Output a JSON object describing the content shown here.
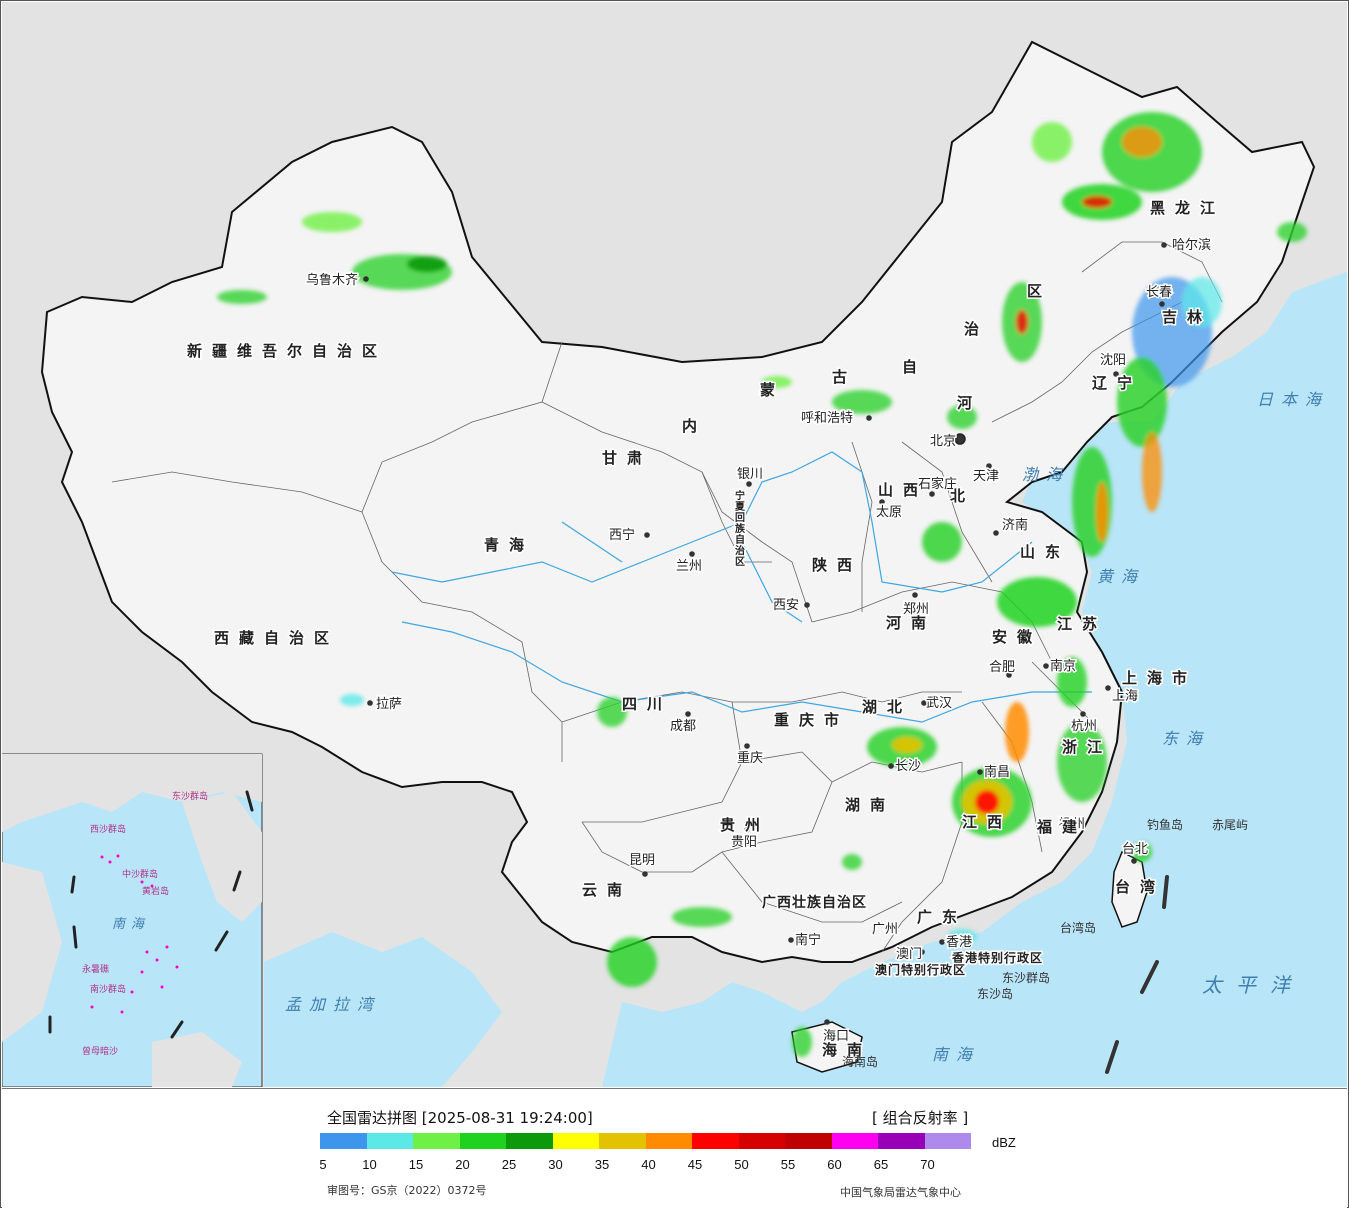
{
  "legend": {
    "title": "全国雷达拼图 [2025-08-31 19:24:00]",
    "product": "[ 组合反射率 ]",
    "unit": "dBZ",
    "approval_number": "审图号：GS京（2022）0372号",
    "agency": "中国气象局雷达气象中心",
    "colors": [
      "#3d95ec",
      "#5de8e8",
      "#6ef046",
      "#1ed21e",
      "#0c9a0c",
      "#ffff00",
      "#e3c200",
      "#ff8c00",
      "#ff0000",
      "#d60000",
      "#c00000",
      "#ff00f0",
      "#9800b8",
      "#ad8aeb"
    ],
    "ticks": [
      "5",
      "10",
      "15",
      "20",
      "25",
      "30",
      "35",
      "40",
      "45",
      "50",
      "55",
      "60",
      "65",
      "70"
    ]
  },
  "map": {
    "colors": {
      "sea": "#b9e5f8",
      "land_china": "#f4f4f4",
      "land_other": "#e3e3e3",
      "border": "#111111",
      "river": "#3fa6e0"
    },
    "cities": [
      {
        "id": "urumqi",
        "name": "乌鲁木齐"
      },
      {
        "id": "lhasa",
        "name": "拉萨"
      },
      {
        "id": "xining",
        "name": "西宁"
      },
      {
        "id": "lanzhou",
        "name": "兰州"
      },
      {
        "id": "yinchuan",
        "name": "银川"
      },
      {
        "id": "hohhot",
        "name": "呼和浩特"
      },
      {
        "id": "beijing",
        "name": "北京"
      },
      {
        "id": "tianjin",
        "name": "天津"
      },
      {
        "id": "shijiazhuang",
        "name": "石家庄"
      },
      {
        "id": "taiyuan",
        "name": "太原"
      },
      {
        "id": "jinan",
        "name": "济南"
      },
      {
        "id": "zhengzhou",
        "name": "郑州"
      },
      {
        "id": "xian",
        "name": "西安"
      },
      {
        "id": "chengdu",
        "name": "成都"
      },
      {
        "id": "chongqing",
        "name": "重庆"
      },
      {
        "id": "wuhan",
        "name": "武汉"
      },
      {
        "id": "hefei",
        "name": "合肥"
      },
      {
        "id": "nanjing",
        "name": "南京"
      },
      {
        "id": "shanghai",
        "name": "上海"
      },
      {
        "id": "hangzhou",
        "name": "杭州"
      },
      {
        "id": "nanchang",
        "name": "南昌"
      },
      {
        "id": "changsha",
        "name": "长沙"
      },
      {
        "id": "fuzhou",
        "name": "福州"
      },
      {
        "id": "taipei",
        "name": "台北"
      },
      {
        "id": "guiyang",
        "name": "贵阳"
      },
      {
        "id": "kunming",
        "name": "昆明"
      },
      {
        "id": "nanning",
        "name": "南宁"
      },
      {
        "id": "guangzhou",
        "name": "广州"
      },
      {
        "id": "hongkong",
        "name": "香港"
      },
      {
        "id": "macau",
        "name": "澳门"
      },
      {
        "id": "haikou",
        "name": "海口"
      },
      {
        "id": "shenyang",
        "name": "沈阳"
      },
      {
        "id": "changchun",
        "name": "长春"
      },
      {
        "id": "harbin",
        "name": "哈尔滨"
      }
    ],
    "provinces": [
      {
        "id": "xinjiang",
        "name": "新疆维吾尔自治区"
      },
      {
        "id": "xizang",
        "name": "西藏自治区"
      },
      {
        "id": "qinghai",
        "name": "青海"
      },
      {
        "id": "gansu",
        "name": "甘肃"
      },
      {
        "id": "neimenggu-nei",
        "name": "内"
      },
      {
        "id": "neimenggu-meng",
        "name": "蒙"
      },
      {
        "id": "neimenggu-gu",
        "name": "古"
      },
      {
        "id": "neimenggu-zi",
        "name": "自"
      },
      {
        "id": "neimenggu-zhi",
        "name": "治"
      },
      {
        "id": "neimenggu-qu",
        "name": "区"
      },
      {
        "id": "heilongjiang",
        "name": "黑龙江"
      },
      {
        "id": "jilin",
        "name": "吉林"
      },
      {
        "id": "liaoning",
        "name": "辽宁"
      },
      {
        "id": "hebei-he",
        "name": "河"
      },
      {
        "id": "hebei-bei",
        "name": "北"
      },
      {
        "id": "shanxi",
        "name": "山西"
      },
      {
        "id": "shandong",
        "name": "山东"
      },
      {
        "id": "henan",
        "name": "河南"
      },
      {
        "id": "shaanxi",
        "name": "陕西"
      },
      {
        "id": "ningxia",
        "name": "宁夏回族自治区"
      },
      {
        "id": "sichuan",
        "name": "四川"
      },
      {
        "id": "chongqing-shi",
        "name": "重庆市"
      },
      {
        "id": "hubei",
        "name": "湖北"
      },
      {
        "id": "hunan",
        "name": "湖南"
      },
      {
        "id": "jiangxi",
        "name": "江西"
      },
      {
        "id": "anhui",
        "name": "安徽"
      },
      {
        "id": "jiangsu",
        "name": "江苏"
      },
      {
        "id": "shanghai-shi",
        "name": "上海市"
      },
      {
        "id": "zhejiang",
        "name": "浙江"
      },
      {
        "id": "fujian",
        "name": "福建"
      },
      {
        "id": "taiwan",
        "name": "台湾"
      },
      {
        "id": "guizhou",
        "name": "贵州"
      },
      {
        "id": "yunnan",
        "name": "云南"
      },
      {
        "id": "guangxi",
        "name": "广西壮族自治区"
      },
      {
        "id": "guangdong",
        "name": "广东"
      },
      {
        "id": "hainan",
        "name": "海南"
      },
      {
        "id": "hk-sar",
        "name": "香港特别行政区"
      },
      {
        "id": "macau-sar",
        "name": "澳门特别行政区"
      }
    ],
    "seas": [
      {
        "id": "bohai",
        "name": "渤海"
      },
      {
        "id": "huanghai",
        "name": "黄海"
      },
      {
        "id": "donghai",
        "name": "东海"
      },
      {
        "id": "nanhai",
        "name": "南海"
      },
      {
        "id": "riben-hai",
        "name": "日本海"
      },
      {
        "id": "taipingyang",
        "name": "太平洋"
      },
      {
        "id": "mengjiala",
        "name": "孟加拉湾"
      }
    ],
    "islands": [
      {
        "id": "diaoyu",
        "name": "钓鱼岛"
      },
      {
        "id": "chiwei",
        "name": "赤尾屿"
      },
      {
        "id": "taiwan-dao",
        "name": "台湾岛"
      },
      {
        "id": "dongsha-qundao",
        "name": "东沙群岛"
      },
      {
        "id": "dongsha-dao",
        "name": "东沙岛"
      },
      {
        "id": "hainan-dao",
        "name": "海南岛"
      }
    ],
    "inset": {
      "sea": "南海",
      "labels": [
        "东沙群岛",
        "西沙群岛",
        "中沙群岛",
        "黄岩岛",
        "南沙群岛",
        "永暑礁",
        "曾母暗沙"
      ]
    }
  }
}
